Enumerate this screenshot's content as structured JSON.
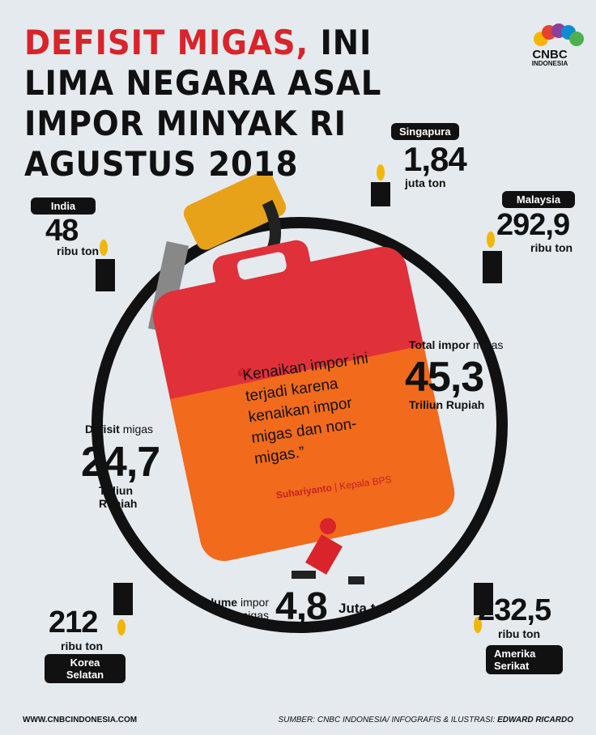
{
  "header": {
    "title_highlight": "DEFISIT MIGAS,",
    "title_lines": [
      "INI",
      "LIMA NEGARA ASAL",
      "IMPOR MINYAK RI",
      "AGUSTUS 2018"
    ]
  },
  "logo": {
    "name": "CNBC",
    "sub": "INDONESIA"
  },
  "countries": [
    {
      "name": "Singapura",
      "value": "1,84",
      "unit": "juta ton"
    },
    {
      "name": "India",
      "value": "48",
      "unit": "ribu ton"
    },
    {
      "name": "Malaysia",
      "value": "292,9",
      "unit": "ribu ton"
    },
    {
      "name": "Korea Selatan",
      "value": "212",
      "unit": "ribu ton"
    },
    {
      "name": "Amerika Serikat",
      "value": "232,5",
      "unit": "ribu ton"
    }
  ],
  "stats": {
    "total": {
      "label_bold": "Total impor",
      "label_light": "migas",
      "value": "45,3",
      "unit": "Triliun Rupiah"
    },
    "deficit": {
      "label_bold": "Defisit",
      "label_light": "migas",
      "value": "24,7",
      "unit": "Triliun Rupiah"
    },
    "volume": {
      "label_bold": "volume",
      "label_light": "impor migas",
      "value": "4,8",
      "unit": "Juta ton"
    }
  },
  "quote": {
    "mark": "“",
    "text": "Kenaikan impor ini terjadi karena kenaikan impor migas dan non-migas.”",
    "speaker": "Suhariyanto",
    "role": "Kepala BPS"
  },
  "footer": {
    "website": "WWW.CNBCINDONESIA.COM",
    "source_label": "SUMBER:",
    "source": "CNBC INDONESIA/ INFOGRAFIS & ILUSTRASI:",
    "author": "EDWARD RICARDO"
  }
}
